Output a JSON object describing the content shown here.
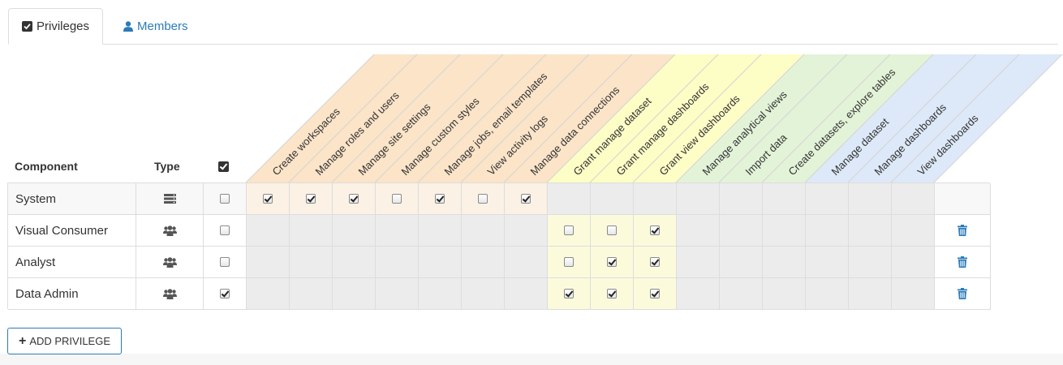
{
  "tabs": [
    {
      "label": "Privileges",
      "icon": "checkbox-icon",
      "active": true
    },
    {
      "label": "Members",
      "icon": "user-icon",
      "active": false
    }
  ],
  "table": {
    "headers": {
      "component": "Component",
      "type": "Type"
    },
    "permissions": [
      {
        "label": "Create workspaces",
        "group": "site"
      },
      {
        "label": "Manage roles and users",
        "group": "site"
      },
      {
        "label": "Manage site settings",
        "group": "site"
      },
      {
        "label": "Manage custom styles",
        "group": "site"
      },
      {
        "label": "Manage jobs, email templates",
        "group": "site"
      },
      {
        "label": "View activity logs",
        "group": "site"
      },
      {
        "label": "Manage data connections",
        "group": "site"
      },
      {
        "label": "Grant manage dataset",
        "group": "grant"
      },
      {
        "label": "Grant manage dashboards",
        "group": "grant"
      },
      {
        "label": "Grant view dashboards",
        "group": "grant"
      },
      {
        "label": "Manage analytical views",
        "group": "data"
      },
      {
        "label": "Import data",
        "group": "data"
      },
      {
        "label": "Create datasets, explore tables",
        "group": "data"
      },
      {
        "label": "Manage dataset",
        "group": "dash"
      },
      {
        "label": "Manage dashboards",
        "group": "dash"
      },
      {
        "label": "View dashboards",
        "group": "dash"
      }
    ],
    "rows": [
      {
        "name": "System",
        "type_icon": "server-icon",
        "all": false,
        "perms": [
          true,
          true,
          true,
          false,
          true,
          false,
          true,
          null,
          null,
          null,
          null,
          null,
          null,
          null,
          null,
          null
        ],
        "deletable": false
      },
      {
        "name": "Visual Consumer",
        "type_icon": "users-icon",
        "all": false,
        "perms": [
          null,
          null,
          null,
          null,
          null,
          null,
          null,
          false,
          false,
          true,
          null,
          null,
          null,
          null,
          null,
          null
        ],
        "deletable": true
      },
      {
        "name": "Analyst",
        "type_icon": "users-icon",
        "all": false,
        "perms": [
          null,
          null,
          null,
          null,
          null,
          null,
          null,
          false,
          true,
          true,
          null,
          null,
          null,
          null,
          null,
          null
        ],
        "deletable": true
      },
      {
        "name": "Data Admin",
        "type_icon": "users-icon",
        "all": true,
        "perms": [
          null,
          null,
          null,
          null,
          null,
          null,
          null,
          true,
          true,
          true,
          null,
          null,
          null,
          null,
          null,
          null
        ],
        "deletable": true
      }
    ]
  },
  "actions": {
    "add_privilege": "ADD PRIVILEGE"
  },
  "colors": {
    "site": "#fbe4c8",
    "site_row": "#fbf1e4",
    "grant": "#fdfdc6",
    "grant_row": "#fbfbdc",
    "data": "#e3f3d8",
    "dash": "#dde9f8",
    "disabled": "#ececec",
    "link": "#2b7bb9"
  }
}
